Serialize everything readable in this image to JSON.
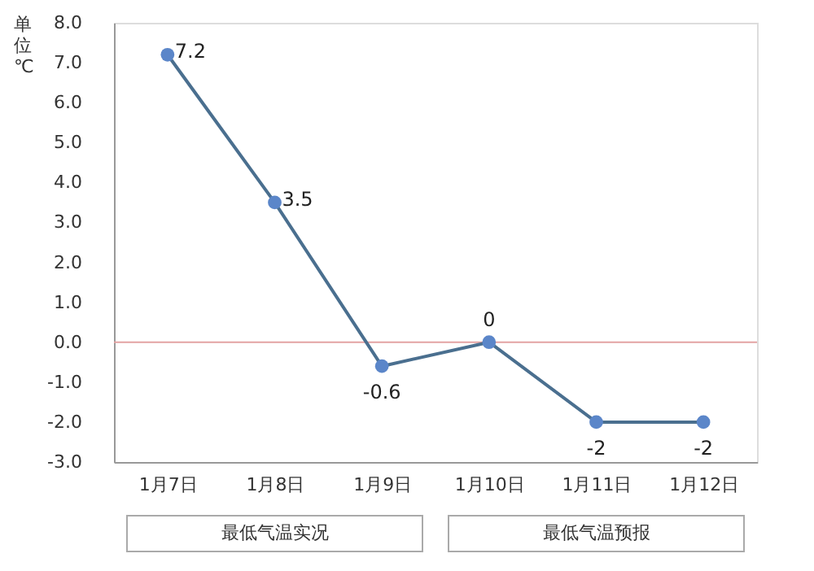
{
  "chart_data": {
    "type": "line",
    "ylabel": "单位℃",
    "categories": [
      "1月7日",
      "1月8日",
      "1月9日",
      "1月10日",
      "1月11日",
      "1月12日"
    ],
    "series": [
      {
        "color": "#4a6f8f",
        "values": [
          7.2,
          3.5,
          -0.6,
          0,
          -2,
          -2
        ]
      }
    ],
    "ylim": [
      -3.0,
      8.0
    ],
    "yticks": [
      {
        "value": -3,
        "label": "-3.0"
      },
      {
        "value": -2,
        "label": "-2.0"
      },
      {
        "value": -1,
        "label": "-1.0"
      },
      {
        "value": 0,
        "label": "0.0"
      },
      {
        "value": 1,
        "label": "1.0"
      },
      {
        "value": 2,
        "label": "2.0"
      },
      {
        "value": 3,
        "label": "3.0"
      },
      {
        "value": 4,
        "label": "4.0"
      },
      {
        "value": 5,
        "label": "5.0"
      },
      {
        "value": 6,
        "label": "6.0"
      },
      {
        "value": 7,
        "label": "7.0"
      },
      {
        "value": 8,
        "label": "8.0"
      }
    ],
    "ref_lines": [
      {
        "axis": "y",
        "value": 0,
        "color": "#e3a3a3"
      }
    ],
    "annotations": [
      "最低气温实况",
      "最低气温预报"
    ],
    "data_labels": true,
    "marker": "circle",
    "grid": false
  }
}
